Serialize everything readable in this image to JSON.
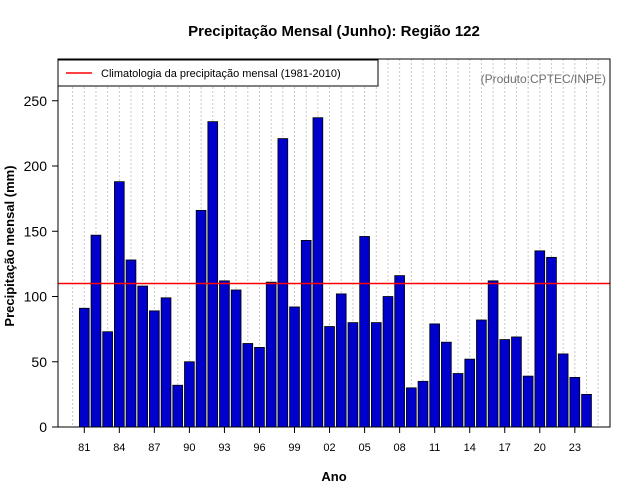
{
  "chart_data": {
    "type": "bar",
    "title": "Precipitação Mensal (Junho): Região 122",
    "xlabel": "Ano",
    "ylabel": "Precipitação mensal (mm)",
    "source": "(Produto:CPTEC/INPE)",
    "ylim": [
      0,
      282
    ],
    "yticks": [
      0,
      50,
      100,
      150,
      200,
      250
    ],
    "x_tick_labels": [
      "81",
      "84",
      "87",
      "90",
      "93",
      "96",
      "99",
      "02",
      "05",
      "08",
      "11",
      "14",
      "17",
      "20",
      "23"
    ],
    "years": [
      1981,
      1982,
      1983,
      1984,
      1985,
      1986,
      1987,
      1988,
      1989,
      1990,
      1991,
      1992,
      1993,
      1994,
      1995,
      1996,
      1997,
      1998,
      1999,
      2000,
      2001,
      2002,
      2003,
      2004,
      2005,
      2006,
      2007,
      2008,
      2009,
      2010,
      2011,
      2012,
      2013,
      2014,
      2015,
      2016,
      2017,
      2018,
      2019,
      2020,
      2021,
      2022,
      2023,
      2024
    ],
    "values": [
      91,
      147,
      73,
      188,
      128,
      108,
      89,
      99,
      32,
      50,
      166,
      234,
      112,
      105,
      64,
      61,
      111,
      221,
      92,
      143,
      237,
      77,
      102,
      80,
      146,
      80,
      100,
      116,
      30,
      35,
      79,
      65,
      41,
      52,
      82,
      112,
      67,
      69,
      39,
      135,
      130,
      56,
      38,
      25
    ],
    "bar_color": "#0000cc",
    "climatology": {
      "value": 110,
      "label": "Climatologia da precipitação mensal (1981-2010)",
      "color": "#ff0000"
    },
    "grid": "vertical-dotted",
    "legend_position": "top-left"
  }
}
